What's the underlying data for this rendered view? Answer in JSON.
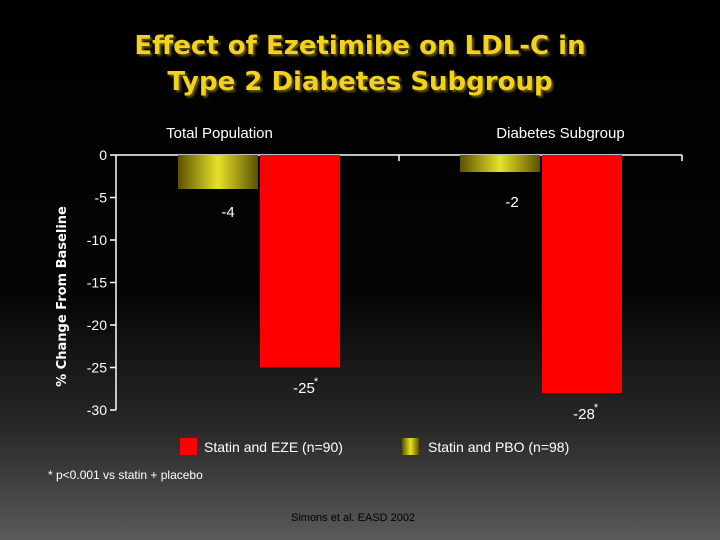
{
  "slide": {
    "title_line1": "Effect of Ezetimibe on LDL-C in",
    "title_line2": "Type 2 Diabetes Subgroup",
    "footnote": "*  p<0.001 vs statin + placebo",
    "source": "Simons et al. EASD 2002"
  },
  "chart_data": {
    "type": "bar",
    "categories": [
      "Total Population",
      "Diabetes Subgroup"
    ],
    "series": [
      {
        "name": "Statin and PBO (n=98)",
        "values": [
          -4,
          -2
        ],
        "color": "#d4cf1e"
      },
      {
        "name": "Statin and EZE (n=90)",
        "values": [
          -25,
          -28
        ],
        "color": "#ff0000"
      }
    ],
    "data_labels": [
      {
        "category": 0,
        "series": 0,
        "text": "-4",
        "asterisk": false
      },
      {
        "category": 1,
        "series": 0,
        "text": "-2",
        "asterisk": false
      },
      {
        "category": 0,
        "series": 1,
        "text": "-25",
        "asterisk": true
      },
      {
        "category": 1,
        "series": 1,
        "text": "-28",
        "asterisk": true
      }
    ],
    "ylabel": "% Change From Baseline",
    "ylim": [
      -30,
      0
    ],
    "yticks": [
      0,
      -5,
      -10,
      -15,
      -20,
      -25,
      -30
    ],
    "legend_position": "bottom",
    "grid": false
  }
}
